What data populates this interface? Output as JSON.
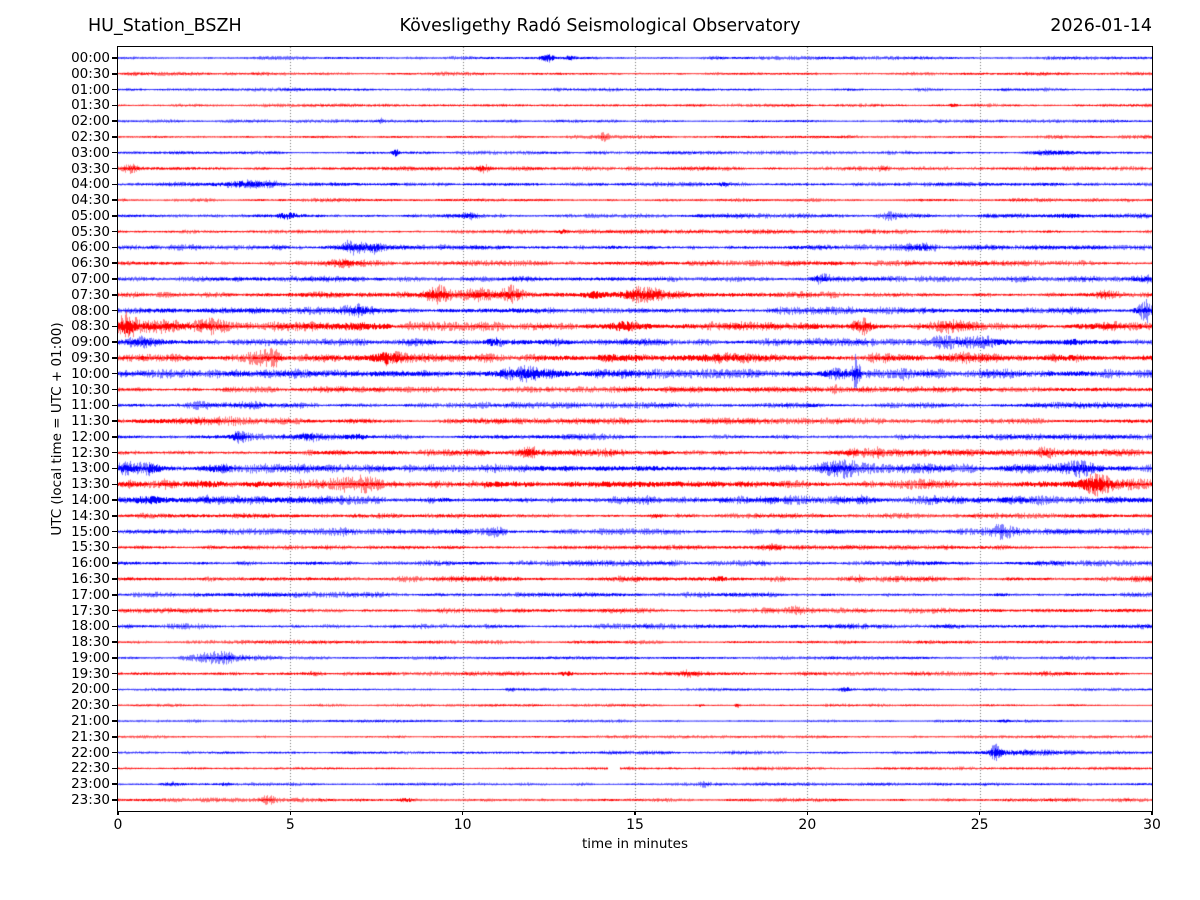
{
  "figure": {
    "title_left": "HU_Station_BSZH",
    "title_center": "Kövesligethy Radó Seismological Observatory",
    "title_right": "2026-01-14",
    "background": "#ffffff"
  },
  "chart_data": {
    "type": "line",
    "subtype": "helicorder-seismogram",
    "title": "Kövesligethy Radó Seismological Observatory",
    "station": "HU_Station_BSZH",
    "date": "2026-01-14",
    "xlabel": "time in minutes",
    "ylabel": "UTC (local time = UTC + 01:00)",
    "x_range": [
      0,
      30
    ],
    "x_ticks": [
      0,
      5,
      10,
      15,
      20,
      25,
      30
    ],
    "grid_minutes": [
      5,
      10,
      15,
      20,
      25
    ],
    "grid_style": "dotted",
    "legend": "none",
    "colors": {
      "blue": "#0000ff",
      "red": "#ff0000"
    },
    "row_note": "48 half-hour traces, amplitudes in px (half-height), events = [center_min, sigma_min, extra_amp_px]",
    "rows": [
      {
        "label": "00:00",
        "color": "blue",
        "amp": 1.1,
        "events": [
          [
            12.45,
            0.15,
            4.5
          ],
          [
            13.1,
            0.1,
            2
          ]
        ]
      },
      {
        "label": "00:30",
        "color": "red",
        "amp": 1.1,
        "events": []
      },
      {
        "label": "01:00",
        "color": "blue",
        "amp": 1.1,
        "events": []
      },
      {
        "label": "01:30",
        "color": "red",
        "amp": 1.0,
        "events": [
          [
            24.2,
            0.08,
            1.5
          ]
        ]
      },
      {
        "label": "02:00",
        "color": "blue",
        "amp": 1.0,
        "events": [
          [
            7.6,
            0.1,
            1.5
          ]
        ]
      },
      {
        "label": "02:30",
        "color": "red",
        "amp": 1.1,
        "events": [
          [
            14.1,
            0.1,
            1.5
          ]
        ]
      },
      {
        "label": "03:00",
        "color": "blue",
        "amp": 1.1,
        "events": [
          [
            8.05,
            0.06,
            3.5
          ],
          [
            27.2,
            0.5,
            1.2
          ]
        ]
      },
      {
        "label": "03:30",
        "color": "red",
        "amp": 1.3,
        "events": [
          [
            0.3,
            0.2,
            2
          ],
          [
            10.6,
            0.15,
            1.5
          ],
          [
            22.2,
            0.1,
            1.5
          ]
        ]
      },
      {
        "label": "04:00",
        "color": "blue",
        "amp": 1.4,
        "events": [
          [
            3.7,
            0.5,
            2.2
          ],
          [
            17.6,
            0.1,
            1.5
          ],
          [
            21.4,
            0.1,
            1.2
          ]
        ]
      },
      {
        "label": "04:30",
        "color": "red",
        "amp": 1.1,
        "events": []
      },
      {
        "label": "05:00",
        "color": "blue",
        "amp": 1.5,
        "events": [
          [
            4.9,
            0.2,
            2.2
          ],
          [
            10.2,
            0.15,
            1.5
          ],
          [
            22.4,
            0.12,
            1.8
          ],
          [
            27.6,
            0.3,
            1.2
          ]
        ]
      },
      {
        "label": "05:30",
        "color": "red",
        "amp": 1.3,
        "events": [
          [
            12.9,
            0.1,
            1.8
          ]
        ]
      },
      {
        "label": "06:00",
        "color": "blue",
        "amp": 1.7,
        "events": [
          [
            6.8,
            0.2,
            3
          ],
          [
            7.4,
            0.15,
            2.5
          ],
          [
            23.2,
            0.3,
            1.5
          ]
        ]
      },
      {
        "label": "06:30",
        "color": "red",
        "amp": 1.6,
        "events": [
          [
            6.5,
            0.4,
            1
          ],
          [
            21,
            0.3,
            1
          ]
        ]
      },
      {
        "label": "07:00",
        "color": "blue",
        "amp": 1.7,
        "events": [
          [
            20.3,
            0.2,
            2.8
          ],
          [
            26.3,
            0.3,
            1.2
          ],
          [
            29.8,
            0.3,
            1.8
          ]
        ]
      },
      {
        "label": "07:30",
        "color": "red",
        "amp": 1.9,
        "events": [
          [
            9.3,
            0.25,
            3.5
          ],
          [
            10.4,
            0.3,
            2.5
          ],
          [
            11.4,
            0.2,
            3.2
          ],
          [
            13.8,
            0.2,
            2.2
          ],
          [
            15.2,
            0.5,
            3
          ],
          [
            25.1,
            0.15,
            1.5
          ],
          [
            28.6,
            0.2,
            1.5
          ]
        ]
      },
      {
        "label": "08:00",
        "color": "blue",
        "amp": 2.2,
        "events": [
          [
            0.6,
            0.2,
            2.5
          ],
          [
            7,
            0.3,
            1.5
          ],
          [
            23.2,
            0.4,
            1.5
          ],
          [
            29.8,
            0.25,
            4
          ]
        ]
      },
      {
        "label": "08:30",
        "color": "red",
        "amp": 2.6,
        "events": [
          [
            0.25,
            0.18,
            7
          ],
          [
            1,
            0.5,
            2
          ],
          [
            2.7,
            0.3,
            2
          ],
          [
            7,
            0.4,
            1.5
          ],
          [
            14.7,
            0.25,
            3
          ],
          [
            21.6,
            0.2,
            3
          ],
          [
            24.2,
            0.3,
            1.5
          ],
          [
            28.8,
            0.8,
            2
          ]
        ]
      },
      {
        "label": "09:00",
        "color": "blue",
        "amp": 2.2,
        "events": [
          [
            0.5,
            0.4,
            1.5
          ],
          [
            10.9,
            0.2,
            2.5
          ],
          [
            24.5,
            0.8,
            2
          ],
          [
            27.9,
            0.3,
            1.5
          ]
        ]
      },
      {
        "label": "09:30",
        "color": "red",
        "amp": 2.4,
        "events": [
          [
            4.4,
            0.35,
            4
          ],
          [
            7.8,
            0.25,
            4
          ],
          [
            14.8,
            1,
            2
          ],
          [
            17.5,
            0.6,
            1.5
          ],
          [
            26.5,
            2.5,
            1.5
          ]
        ]
      },
      {
        "label": "10:00",
        "color": "blue",
        "amp": 2.6,
        "events": [
          [
            12,
            0.6,
            2.5
          ],
          [
            20.6,
            0.25,
            2.5
          ],
          [
            21.42,
            0.07,
            10
          ],
          [
            23,
            0.3,
            1.5
          ]
        ]
      },
      {
        "label": "10:30",
        "color": "red",
        "amp": 1.7,
        "events": [
          [
            20.8,
            0.1,
            1.8
          ]
        ]
      },
      {
        "label": "11:00",
        "color": "blue",
        "amp": 1.8,
        "events": [
          [
            3,
            1,
            2.2
          ]
        ]
      },
      {
        "label": "11:30",
        "color": "red",
        "amp": 1.8,
        "events": [
          [
            2.5,
            2,
            0.8
          ]
        ]
      },
      {
        "label": "12:00",
        "color": "blue",
        "amp": 1.8,
        "events": [
          [
            3.5,
            0.15,
            3.5
          ],
          [
            5.5,
            0.25,
            2
          ],
          [
            6.9,
            0.2,
            1.5
          ]
        ]
      },
      {
        "label": "12:30",
        "color": "red",
        "amp": 2.0,
        "events": [
          [
            11.9,
            0.2,
            2.5
          ],
          [
            14.6,
            0.3,
            1.5
          ],
          [
            21.4,
            0.6,
            2.2
          ],
          [
            26.9,
            0.2,
            1.8
          ]
        ]
      },
      {
        "label": "13:00",
        "color": "blue",
        "amp": 2.6,
        "events": [
          [
            0.5,
            0.6,
            3
          ],
          [
            2.9,
            0.3,
            1.8
          ],
          [
            21,
            0.4,
            2.8
          ],
          [
            28,
            0.35,
            2.2
          ]
        ]
      },
      {
        "label": "13:30",
        "color": "red",
        "amp": 3.0,
        "events": [
          [
            2,
            0.8,
            1.5
          ],
          [
            7.2,
            0.9,
            2
          ],
          [
            10.5,
            0.4,
            1
          ],
          [
            28.3,
            0.3,
            4.5
          ]
        ]
      },
      {
        "label": "14:00",
        "color": "blue",
        "amp": 2.7,
        "events": [
          [
            0.9,
            0.25,
            2
          ]
        ]
      },
      {
        "label": "14:30",
        "color": "red",
        "amp": 1.6,
        "events": [
          [
            15.6,
            0.15,
            2
          ]
        ]
      },
      {
        "label": "15:00",
        "color": "blue",
        "amp": 1.8,
        "events": [
          [
            6.6,
            0.3,
            1.2
          ],
          [
            11,
            0.25,
            1.8
          ],
          [
            25.6,
            0.25,
            3.2
          ]
        ]
      },
      {
        "label": "15:30",
        "color": "red",
        "amp": 1.4,
        "events": [
          [
            19,
            0.2,
            1.2
          ]
        ]
      },
      {
        "label": "16:00",
        "color": "blue",
        "amp": 1.7,
        "events": []
      },
      {
        "label": "16:30",
        "color": "red",
        "amp": 1.7,
        "events": [
          [
            17.4,
            0.15,
            1.5
          ],
          [
            21.4,
            0.15,
            1.5
          ]
        ]
      },
      {
        "label": "17:00",
        "color": "blue",
        "amp": 1.6,
        "events": []
      },
      {
        "label": "17:30",
        "color": "red",
        "amp": 1.6,
        "events": [
          [
            19.6,
            0.2,
            1
          ]
        ]
      },
      {
        "label": "18:00",
        "color": "blue",
        "amp": 1.6,
        "events": []
      },
      {
        "label": "18:30",
        "color": "red",
        "amp": 1.2,
        "events": []
      },
      {
        "label": "19:00",
        "color": "blue",
        "amp": 1.1,
        "events": [
          [
            2.8,
            0.45,
            2.3
          ],
          [
            3.6,
            0.45,
            2.3
          ]
        ]
      },
      {
        "label": "19:30",
        "color": "red",
        "amp": 1.3,
        "events": [
          [
            5.6,
            0.15,
            1.2
          ],
          [
            13,
            0.15,
            1.2
          ],
          [
            16.6,
            0.15,
            1.2
          ],
          [
            26.5,
            0.6,
            1.5
          ]
        ]
      },
      {
        "label": "20:00",
        "color": "blue",
        "amp": 0.9,
        "events": [
          [
            11.4,
            0.1,
            1.2
          ],
          [
            21.1,
            0.1,
            1.5
          ]
        ]
      },
      {
        "label": "20:30",
        "color": "red",
        "amp": 0.9,
        "events": [
          [
            16.9,
            0.08,
            1.2
          ],
          [
            17.95,
            0.05,
            3.5
          ]
        ]
      },
      {
        "label": "21:00",
        "color": "blue",
        "amp": 0.9,
        "events": [
          [
            25.7,
            0.1,
            1
          ]
        ]
      },
      {
        "label": "21:30",
        "color": "red",
        "amp": 0.9,
        "events": []
      },
      {
        "label": "22:00",
        "color": "blue",
        "amp": 1.1,
        "events": [
          [
            25.45,
            0.12,
            4.5
          ],
          [
            26.3,
            0.7,
            1.5
          ]
        ]
      },
      {
        "label": "22:30",
        "color": "red",
        "amp": 1.0,
        "events": [],
        "gaps": [
          [
            14.2,
            14.55
          ]
        ]
      },
      {
        "label": "23:00",
        "color": "blue",
        "amp": 1.0,
        "events": [
          [
            1.55,
            0.25,
            2.2
          ],
          [
            3.1,
            0.1,
            1.2
          ],
          [
            17,
            0.1,
            1
          ]
        ]
      },
      {
        "label": "23:30",
        "color": "red",
        "amp": 1.2,
        "events": [
          [
            4.35,
            0.15,
            1.5
          ],
          [
            7,
            0.15,
            1.2
          ],
          [
            8.35,
            0.12,
            1.8
          ]
        ]
      }
    ]
  }
}
